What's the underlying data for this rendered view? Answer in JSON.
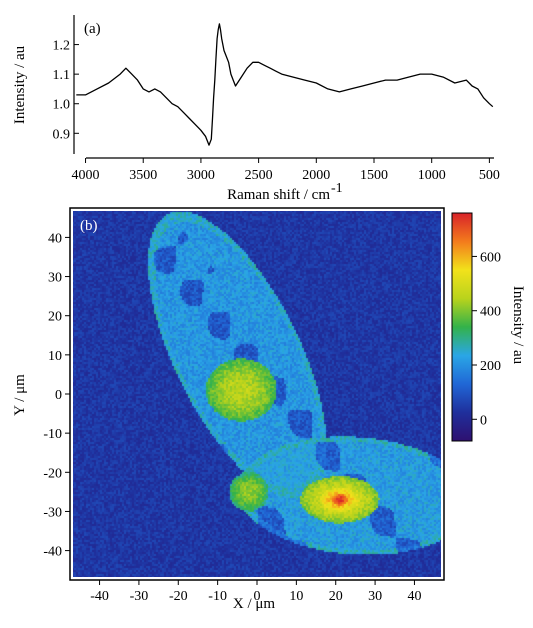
{
  "chart_data": [
    {
      "type": "line",
      "panel_label": "(a)",
      "xlabel": "Raman shift / cm",
      "xlabel_superscript": "-1",
      "ylabel": "Intensity / au",
      "x_reversed": true,
      "xlim": [
        4100,
        460
      ],
      "ylim": [
        0.83,
        1.3
      ],
      "x_ticks": [
        {
          "value": 4000,
          "label": "4000"
        },
        {
          "value": 3500,
          "label": "3500"
        },
        {
          "value": 3000,
          "label": "3000"
        },
        {
          "value": 2500,
          "label": "2500"
        },
        {
          "value": 2000,
          "label": "2000"
        },
        {
          "value": 1500,
          "label": "1500"
        },
        {
          "value": 1000,
          "label": "1000"
        },
        {
          "value": 500,
          "label": "500"
        }
      ],
      "y_ticks": [
        {
          "value": 0.9,
          "label": "0.9"
        },
        {
          "value": 1.0,
          "label": "1.0"
        },
        {
          "value": 1.1,
          "label": "1.1"
        },
        {
          "value": 1.2,
          "label": "1.2"
        }
      ],
      "grid": false,
      "series": [
        {
          "color": "#000000",
          "x": [
            4080,
            4000,
            3900,
            3800,
            3700,
            3650,
            3600,
            3550,
            3500,
            3450,
            3400,
            3350,
            3300,
            3250,
            3200,
            3150,
            3100,
            3050,
            3000,
            2960,
            2930,
            2910,
            2900,
            2890,
            2880,
            2870,
            2860,
            2850,
            2840,
            2830,
            2820,
            2800,
            2780,
            2760,
            2740,
            2720,
            2700,
            2650,
            2600,
            2550,
            2500,
            2450,
            2400,
            2350,
            2300,
            2200,
            2100,
            2000,
            1900,
            1800,
            1700,
            1600,
            1500,
            1400,
            1300,
            1200,
            1100,
            1000,
            900,
            800,
            700,
            650,
            600,
            550,
            500,
            470
          ],
          "y": [
            1.03,
            1.03,
            1.05,
            1.07,
            1.1,
            1.12,
            1.1,
            1.08,
            1.05,
            1.04,
            1.05,
            1.04,
            1.02,
            1.0,
            0.99,
            0.97,
            0.95,
            0.93,
            0.91,
            0.89,
            0.86,
            0.88,
            0.95,
            1.02,
            1.08,
            1.15,
            1.22,
            1.25,
            1.27,
            1.25,
            1.22,
            1.18,
            1.16,
            1.14,
            1.1,
            1.08,
            1.06,
            1.09,
            1.12,
            1.14,
            1.14,
            1.13,
            1.12,
            1.11,
            1.1,
            1.09,
            1.08,
            1.07,
            1.05,
            1.04,
            1.05,
            1.06,
            1.07,
            1.08,
            1.08,
            1.09,
            1.1,
            1.1,
            1.09,
            1.07,
            1.08,
            1.06,
            1.05,
            1.02,
            1.0,
            0.99
          ]
        }
      ]
    },
    {
      "type": "heatmap",
      "panel_label": "(b)",
      "xlabel": "X / μm",
      "ylabel": "Y / μm",
      "xlim": [
        -47,
        47
      ],
      "ylim": [
        -47,
        47
      ],
      "x_ticks": [
        {
          "value": -40,
          "label": "-40"
        },
        {
          "value": -30,
          "label": "-30"
        },
        {
          "value": -20,
          "label": "-20"
        },
        {
          "value": -10,
          "label": "-10"
        },
        {
          "value": 0,
          "label": "0"
        },
        {
          "value": 10,
          "label": "10"
        },
        {
          "value": 20,
          "label": "20"
        },
        {
          "value": 30,
          "label": "30"
        },
        {
          "value": 40,
          "label": "40"
        }
      ],
      "y_ticks": [
        {
          "value": 40,
          "label": "40"
        },
        {
          "value": 30,
          "label": "30"
        },
        {
          "value": 20,
          "label": "20"
        },
        {
          "value": 10,
          "label": "10"
        },
        {
          "value": 0,
          "label": "0"
        },
        {
          "value": -10,
          "label": "-10"
        },
        {
          "value": -20,
          "label": "-20"
        },
        {
          "value": -30,
          "label": "-30"
        },
        {
          "value": -40,
          "label": "-40"
        }
      ],
      "colorbar": {
        "label": "Intensity / au",
        "range": [
          -80,
          760
        ],
        "ticks": [
          {
            "value": 600,
            "label": "600"
          },
          {
            "value": 400,
            "label": "400"
          },
          {
            "value": 200,
            "label": "200"
          },
          {
            "value": 0,
            "label": "0"
          }
        ],
        "colormap": [
          "#2e1070",
          "#1f2f9c",
          "#2067d6",
          "#2aa6e6",
          "#33b24a",
          "#b9d31c",
          "#f2e21b",
          "#f37b1c",
          "#d8232a"
        ]
      },
      "background_level": 40,
      "regions": [
        {
          "name": "upper cell",
          "shape": "ellipse",
          "center": [
            -5,
            10
          ],
          "radii": [
            16,
            40
          ],
          "rotation_deg": 26,
          "level": 210
        },
        {
          "name": "lower cell",
          "shape": "ellipse",
          "center": [
            25,
            -26
          ],
          "radii": [
            30,
            15
          ],
          "rotation_deg": -4,
          "level": 220
        },
        {
          "name": "upper green region",
          "shape": "ellipse",
          "center": [
            -4,
            1
          ],
          "radii": [
            9,
            8
          ],
          "rotation_deg": 0,
          "level": 420
        },
        {
          "name": "lower green region",
          "shape": "ellipse",
          "center": [
            21,
            -27
          ],
          "radii": [
            10,
            6
          ],
          "rotation_deg": 0,
          "level": 470
        },
        {
          "name": "yellow core",
          "shape": "ellipse",
          "center": [
            21,
            -27
          ],
          "radii": [
            5,
            3
          ],
          "rotation_deg": 0,
          "level": 580
        },
        {
          "name": "red hotspot",
          "shape": "ellipse",
          "center": [
            21,
            -27
          ],
          "radii": [
            2,
            1.5
          ],
          "rotation_deg": 0,
          "level": 700
        },
        {
          "name": "junction green",
          "shape": "ellipse",
          "center": [
            -2,
            -25
          ],
          "radii": [
            5,
            5
          ],
          "rotation_deg": 0,
          "level": 380
        }
      ]
    }
  ]
}
